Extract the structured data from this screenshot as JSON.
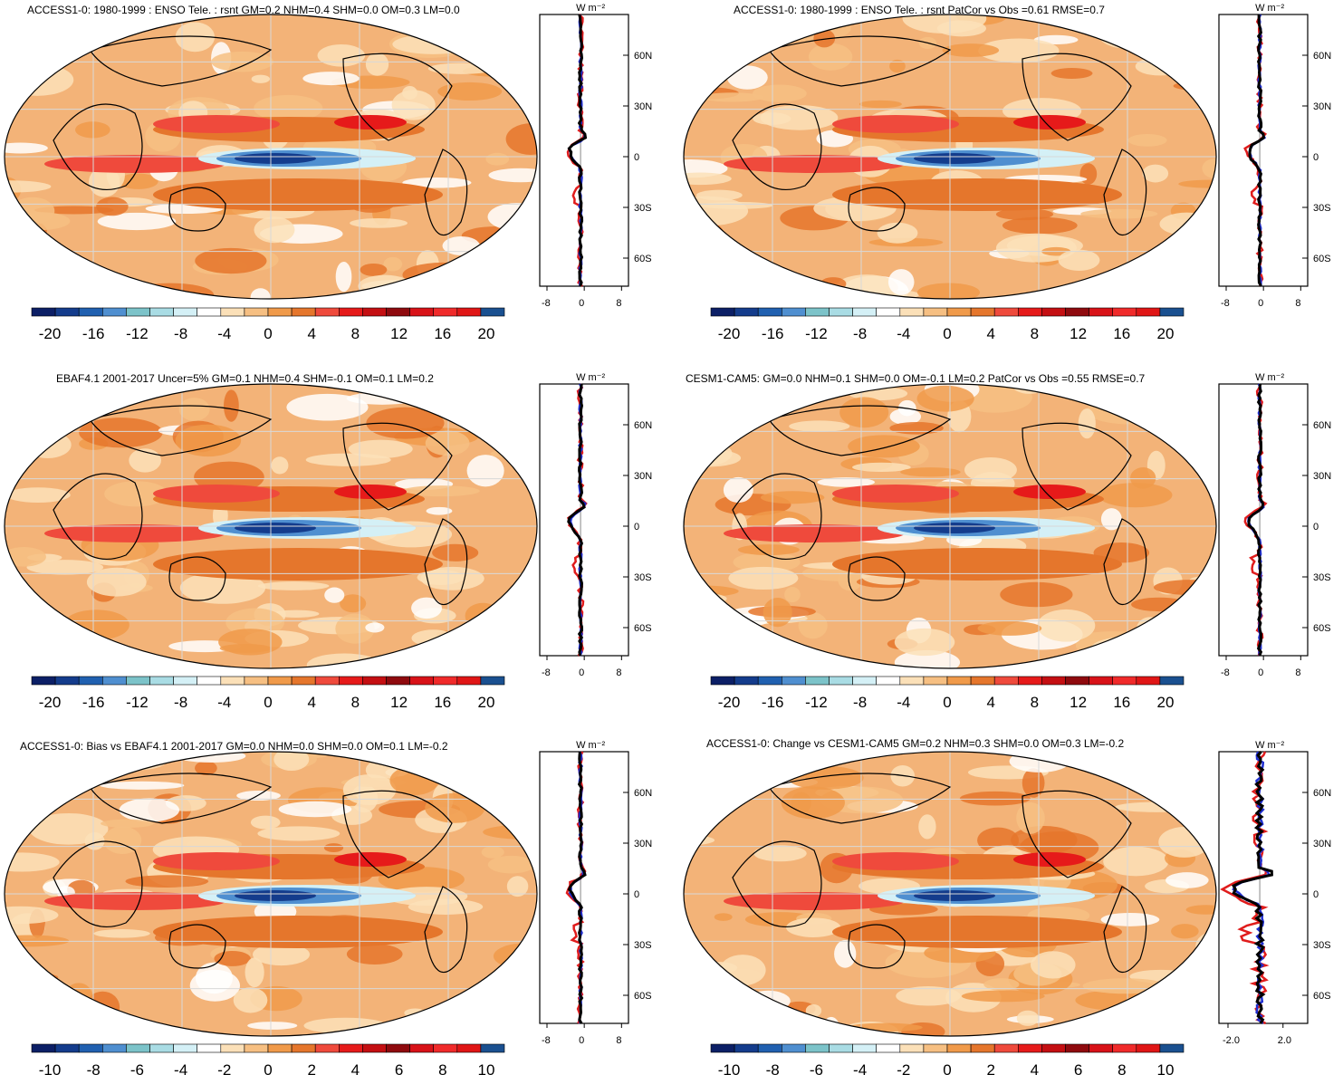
{
  "palette_temp": [
    "#0c1f66",
    "#143c8c",
    "#2060b0",
    "#4f8fd0",
    "#7cc3c9",
    "#a9dce4",
    "#d4f0f6",
    "#ffffff",
    "#fbe0b8",
    "#f6bf82",
    "#f09a4a",
    "#e5762c",
    "#ef4a3c",
    "#e61a1a",
    "#c40f12",
    "#8f0a0e",
    "#d81218",
    "#f02a2a",
    "#e01616",
    "#1a5090"
  ],
  "colors": {
    "obs": "#e01c1c",
    "model": "#1f2ed0",
    "mean": "#000000",
    "land": "#f7c48c",
    "ocean": "#f0a060"
  },
  "labels_20": [
    "-20",
    "-16",
    "-12",
    "-8",
    "-4",
    "0",
    "4",
    "8",
    "12",
    "16",
    "20"
  ],
  "labels_10": [
    "-10",
    "-8",
    "-6",
    "-4",
    "-2",
    "0",
    "2",
    "4",
    "6",
    "8",
    "10"
  ],
  "lat_ticks": [
    "60N",
    "30N",
    "0",
    "30S",
    "60S"
  ],
  "unit": "W m⁻²",
  "panels": [
    {
      "id": "p1",
      "title": "ACCESS1-0: 1980-1999 : ENSO Tele. : rsnt GM=0.2 NHM=0.4 SHM=0.0 OM=0.3 LM=0.0",
      "xticks": [
        "-8",
        "0",
        "8"
      ],
      "scale": "20"
    },
    {
      "id": "p2",
      "title": "ACCESS1-0: 1980-1999 : ENSO Tele. : rsnt PatCor vs Obs =0.61 RMSE=0.7",
      "xticks": [
        "-8",
        "0",
        "8"
      ],
      "scale": "20"
    },
    {
      "id": "p3",
      "title": "EBAF4.1 2001-2017 Uncer=5% GM=0.1 NHM=0.4 SHM=-0.1 OM=0.1 LM=0.2",
      "xticks": [
        "-8",
        "0",
        "8"
      ],
      "scale": "20"
    },
    {
      "id": "p4",
      "title": "CESM1-CAM5: GM=0.0 NHM=0.1 SHM=0.0 OM=-0.1 LM=0.2 PatCor vs Obs =0.55 RMSE=0.7",
      "xticks": [
        "-8",
        "0",
        "8"
      ],
      "scale": "20"
    },
    {
      "id": "p5",
      "title": "ACCESS1-0: Bias vs EBAF4.1 2001-2017 GM=0.0 NHM=0.0 SHM=0.0 OM=0.1 LM=-0.2",
      "xticks": [
        "-8",
        "0",
        "8"
      ],
      "scale": "10"
    },
    {
      "id": "p6",
      "title": "ACCESS1-0: Change vs CESM1-CAM5 GM=0.2 NHM=0.3 SHM=0.0 OM=0.3 LM=-0.2",
      "xticks": [
        "-2.0",
        "2.0"
      ],
      "scale": "10"
    }
  ],
  "chart_data": [
    {
      "type": "heatmap",
      "title": "ACCESS1-0: 1980-1999 : ENSO Tele. : rsnt GM=0.2 NHM=0.4 SHM=0.0 OM=0.3 LM=0.0",
      "colorbar_ticks": [
        -20,
        -16,
        -12,
        -8,
        -4,
        0,
        4,
        8,
        12,
        16,
        20
      ],
      "zonal_profile_xlim": [
        -10,
        10
      ],
      "lat_ticks": [
        "60N",
        "30N",
        "0",
        "30S",
        "60S"
      ]
    },
    {
      "type": "heatmap",
      "title": "ACCESS1-0: 1980-1999 : ENSO Tele. : rsnt PatCor vs Obs =0.61 RMSE=0.7",
      "colorbar_ticks": [
        -20,
        -16,
        -12,
        -8,
        -4,
        0,
        4,
        8,
        12,
        16,
        20
      ],
      "zonal_profile_xlim": [
        -10,
        10
      ]
    },
    {
      "type": "heatmap",
      "title": "EBAF4.1 2001-2017 Uncer=5% GM=0.1 NHM=0.4 SHM=-0.1 OM=0.1 LM=0.2",
      "colorbar_ticks": [
        -20,
        -16,
        -12,
        -8,
        -4,
        0,
        4,
        8,
        12,
        16,
        20
      ],
      "zonal_profile_xlim": [
        -10,
        10
      ]
    },
    {
      "type": "heatmap",
      "title": "CESM1-CAM5: GM=0.0 NHM=0.1 SHM=0.0 OM=-0.1 LM=0.2 PatCor vs Obs =0.55 RMSE=0.7",
      "colorbar_ticks": [
        -20,
        -16,
        -12,
        -8,
        -4,
        0,
        4,
        8,
        12,
        16,
        20
      ],
      "zonal_profile_xlim": [
        -10,
        10
      ]
    },
    {
      "type": "heatmap",
      "title": "ACCESS1-0: Bias vs EBAF4.1 2001-2017 GM=0.0 NHM=0.0 SHM=0.0 OM=0.1 LM=-0.2",
      "colorbar_ticks": [
        -10,
        -8,
        -6,
        -4,
        -2,
        0,
        2,
        4,
        6,
        8,
        10
      ],
      "zonal_profile_xlim": [
        -10,
        10
      ]
    },
    {
      "type": "heatmap",
      "title": "ACCESS1-0: Change vs CESM1-CAM5 GM=0.2 NHM=0.3 SHM=0.0 OM=0.3 LM=-0.2",
      "colorbar_ticks": [
        -10,
        -8,
        -6,
        -4,
        -2,
        0,
        2,
        4,
        6,
        8,
        10
      ],
      "zonal_profile_xlim": [
        -3,
        3
      ]
    }
  ]
}
